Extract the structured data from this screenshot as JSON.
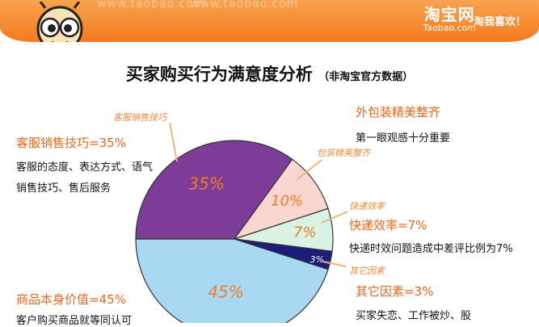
{
  "banner": {
    "watermark_1": "www.taobao.com",
    "watermark_2": "www.taobao.com",
    "brand_cn": "淘宝网",
    "brand_en": "Taobao.com",
    "slogan": "淘我喜欢！"
  },
  "title": "买家购买行为满意度分析",
  "subtitle": "（非淘宝官方数据）",
  "chart_data": {
    "type": "pie",
    "title": "买家购买行为满意度分析",
    "subtitle": "（非淘宝官方数据）",
    "slices": [
      {
        "label": "客服销售技巧",
        "value": 35,
        "pct_label": "35%",
        "color": "#7d3c98"
      },
      {
        "label": "包装精美整齐",
        "value": 10,
        "pct_label": "10%",
        "color": "#f9d7d0"
      },
      {
        "label": "快递效率",
        "value": 7,
        "pct_label": "7%",
        "color": "#d9f2e1"
      },
      {
        "label": "其它因素",
        "value": 3,
        "pct_label": "3%",
        "color": "#1c1c7a"
      },
      {
        "label": "商品本身价值",
        "value": 45,
        "pct_label": "45%",
        "color": "#a9d8f2"
      }
    ]
  },
  "callouts": {
    "service_tag": "客服销售技巧",
    "service_title": "客服销售技巧=35%",
    "service_line1": "客服的态度、表达方式、语气",
    "service_line2": "销售技巧、售后服务",
    "package_title": "外包装精美整齐",
    "package_line1": "第一眼观感十分重要",
    "package_tag": "包装精美整齐",
    "express_tag": "快递效率",
    "express_title": "快递效率=7%",
    "express_line1": "快递时效问题造成中差评比例为7%",
    "other_tag": "其它因素",
    "other_title": "其它因素=3%",
    "other_line1": "买家失恋、工作被炒、股",
    "product_title": "商品本身价值=45%",
    "product_line1": "客户购买商品就等同认可"
  },
  "colors": {
    "accent": "#e8661c",
    "banner": "#f57a1e",
    "pct_text": "#ee7d24"
  }
}
